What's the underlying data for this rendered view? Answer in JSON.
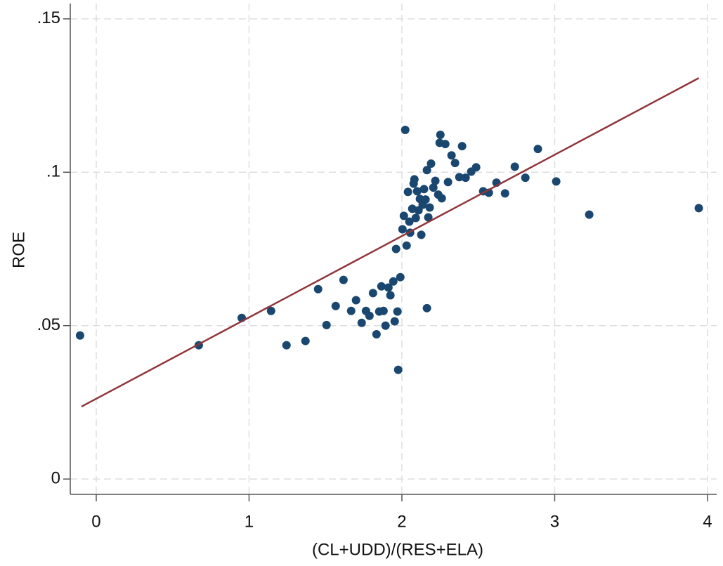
{
  "chart_data": {
    "type": "scatter",
    "x_label": "(CL+UDD)/(RES+ELA)",
    "y_label": "ROE",
    "xlim": [
      -0.17,
      4.06
    ],
    "ylim": [
      -0.005,
      0.155
    ],
    "xticks": [
      0,
      1,
      2,
      3,
      4
    ],
    "yticks": [
      0,
      {
        "value": 0.05,
        "label": ".05"
      },
      {
        "value": 0.1,
        "label": ".1"
      },
      {
        "value": 0.15,
        "label": ".15"
      }
    ],
    "grid": true,
    "color": "#1a476f",
    "x": [
      -0.106,
      0.671,
      0.952,
      1.144,
      1.245,
      1.369,
      1.452,
      1.507,
      1.567,
      1.618,
      1.668,
      1.7,
      1.737,
      1.765,
      1.788,
      1.811,
      1.834,
      1.852,
      1.866,
      1.88,
      1.893,
      1.912,
      1.925,
      1.944,
      1.953,
      1.962,
      1.971,
      1.976,
      1.99,
      2.004,
      2.013,
      2.022,
      2.031,
      2.04,
      2.049,
      2.054,
      2.068,
      2.077,
      2.082,
      2.091,
      2.1,
      2.109,
      2.118,
      2.127,
      2.136,
      2.145,
      2.155,
      2.164,
      2.164,
      2.173,
      2.182,
      2.191,
      2.206,
      2.219,
      2.238,
      2.247,
      2.252,
      2.261,
      2.284,
      2.302,
      2.325,
      2.348,
      2.376,
      2.394,
      2.417,
      2.454,
      2.486,
      2.532,
      2.569,
      2.619,
      2.675,
      2.739,
      2.808,
      2.89,
      3.01,
      3.226,
      3.943
    ],
    "values": [
      0.0468,
      0.0436,
      0.0525,
      0.0548,
      0.0436,
      0.045,
      0.0619,
      0.0502,
      0.0564,
      0.0649,
      0.0548,
      0.0583,
      0.0509,
      0.0548,
      0.0532,
      0.0606,
      0.0472,
      0.0546,
      0.0628,
      0.0548,
      0.05,
      0.0624,
      0.0599,
      0.0644,
      0.0514,
      0.075,
      0.0546,
      0.0356,
      0.0658,
      0.0814,
      0.0858,
      0.1138,
      0.0761,
      0.0936,
      0.0839,
      0.0803,
      0.0881,
      0.0963,
      0.0977,
      0.0851,
      0.0938,
      0.0876,
      0.0913,
      0.0796,
      0.0894,
      0.0945,
      0.0911,
      0.1007,
      0.0557,
      0.0853,
      0.0885,
      0.1028,
      0.095,
      0.0972,
      0.0927,
      0.1096,
      0.1122,
      0.0915,
      0.1092,
      0.0968,
      0.1055,
      0.103,
      0.0984,
      0.1085,
      0.0982,
      0.1002,
      0.1016,
      0.0938,
      0.0933,
      0.0966,
      0.0931,
      0.1018,
      0.0982,
      0.1076,
      0.097,
      0.0862,
      0.0883
    ],
    "fit": {
      "color": "#90353b",
      "x": [
        -0.097,
        3.943
      ],
      "y": [
        0.0236,
        0.1307
      ]
    }
  }
}
